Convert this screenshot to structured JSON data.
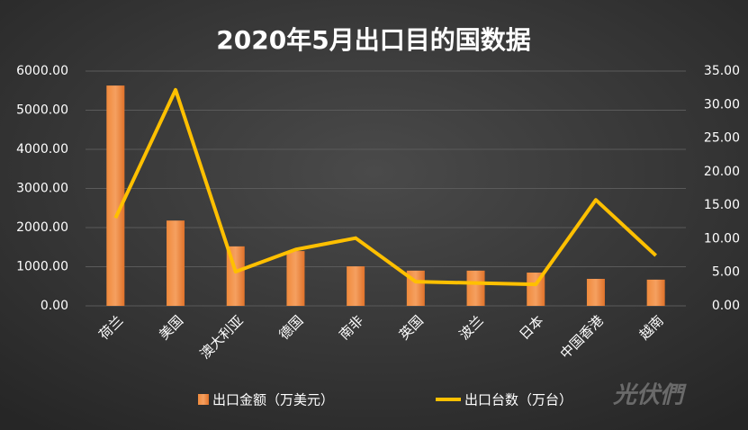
{
  "chart_data": {
    "type": "bar_line",
    "title": "2020年5月出口目的国数据",
    "categories": [
      "荷兰",
      "美国",
      "澳大利亚",
      "德国",
      "南非",
      "英国",
      "波兰",
      "日本",
      "中国香港",
      "越南"
    ],
    "series": [
      {
        "name": "出口金额（万美元）",
        "type": "bar",
        "color": "#ed7d31",
        "axis": "y",
        "values": [
          5630,
          2180,
          1520,
          1400,
          1010,
          900,
          900,
          850,
          690,
          670
        ]
      },
      {
        "name": "出口台数（万台）",
        "type": "line",
        "color": "#ffc000",
        "axis": "y2",
        "values": [
          13.1,
          32.2,
          5.1,
          8.4,
          10.1,
          3.6,
          3.4,
          3.2,
          15.8,
          7.5
        ]
      }
    ],
    "ylim": [
      0,
      6000
    ],
    "yticks": [
      {
        "value": 0,
        "label": "0.00"
      },
      {
        "value": 1000,
        "label": "1000.00"
      },
      {
        "value": 2000,
        "label": "2000.00"
      },
      {
        "value": 3000,
        "label": "3000.00"
      },
      {
        "value": 4000,
        "label": "4000.00"
      },
      {
        "value": 5000,
        "label": "5000.00"
      },
      {
        "value": 6000,
        "label": "6000.00"
      }
    ],
    "y2lim": [
      0,
      35
    ],
    "y2ticks": [
      {
        "value": 0,
        "label": "0.00"
      },
      {
        "value": 5,
        "label": "5.00"
      },
      {
        "value": 10,
        "label": "10.00"
      },
      {
        "value": 15,
        "label": "15.00"
      },
      {
        "value": 20,
        "label": "20.00"
      },
      {
        "value": 25,
        "label": "25.00"
      },
      {
        "value": 30,
        "label": "30.00"
      },
      {
        "value": 35,
        "label": "35.00"
      }
    ],
    "grid": true,
    "legend": "bottom",
    "watermark": "光伏們"
  }
}
